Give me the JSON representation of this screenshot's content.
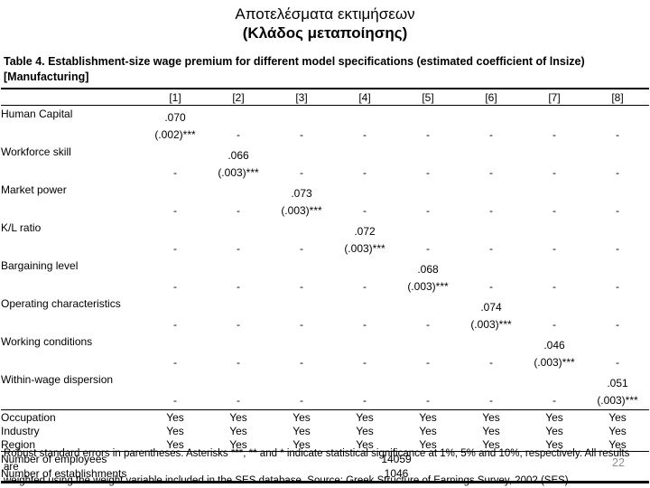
{
  "slide": {
    "title_line1": "Αποτελέσματα εκτιμήσεων",
    "title_line2": "(Κλάδος μεταποίησης)",
    "page_number": "22"
  },
  "colors": {
    "background": "#ffffff",
    "text": "#000000",
    "page_number": "#8f8f8f"
  },
  "table": {
    "caption_line1": "Table 4. Establishment-size wage premium for different model specifications (estimated coefficient of lnsize)",
    "caption_line2": "[Manufacturing]",
    "column_headers": [
      "[1]",
      "[2]",
      "[3]",
      "[4]",
      "[5]",
      "[6]",
      "[7]",
      "[8]"
    ],
    "dash": "-",
    "variables": [
      {
        "label": "Human Capital",
        "column": 1,
        "coef": ".070",
        "se": "(.002)***"
      },
      {
        "label": "Workforce skill",
        "column": 2,
        "coef": ".066",
        "se": "(.003)***"
      },
      {
        "label": "Market power",
        "column": 3,
        "coef": ".073",
        "se": "(.003)***"
      },
      {
        "label": "K/L ratio",
        "column": 4,
        "coef": ".072",
        "se": "(.003)***"
      },
      {
        "label": "Bargaining level",
        "column": 5,
        "coef": ".068",
        "se": "(.003)***"
      },
      {
        "label": "Operating characteristics",
        "column": 6,
        "coef": ".074",
        "se": "(.003)***"
      },
      {
        "label": "Working conditions",
        "column": 7,
        "coef": ".046",
        "se": "(.003)***"
      },
      {
        "label": "Within-wage dispersion",
        "column": 8,
        "coef": ".051",
        "se": "(.003)***"
      }
    ],
    "controls": [
      {
        "label": "Occupation",
        "values": [
          "Yes",
          "Yes",
          "Yes",
          "Yes",
          "Yes",
          "Yes",
          "Yes",
          "Yes"
        ]
      },
      {
        "label": "Industry",
        "values": [
          "Yes",
          "Yes",
          "Yes",
          "Yes",
          "Yes",
          "Yes",
          "Yes",
          "Yes"
        ]
      },
      {
        "label": "Region",
        "values": [
          "Yes",
          "Yes",
          "Yes",
          "Yes",
          "Yes",
          "Yes",
          "Yes",
          "Yes"
        ]
      }
    ],
    "summary": [
      {
        "label": "Number of employees",
        "value": "14059"
      },
      {
        "label": "Number of establishments",
        "value": "1046"
      }
    ],
    "footnote_line1": "Robust standard errors in parentheses.  Asterisks ***, ** and * indicate statistical significance at 1%, 5% and 10%, respectively. All results are",
    "footnote_line2": "weighted using the weight variable included in the SES database. Source: Greek Structure of Earnings Survey, 2002 (SES)"
  }
}
